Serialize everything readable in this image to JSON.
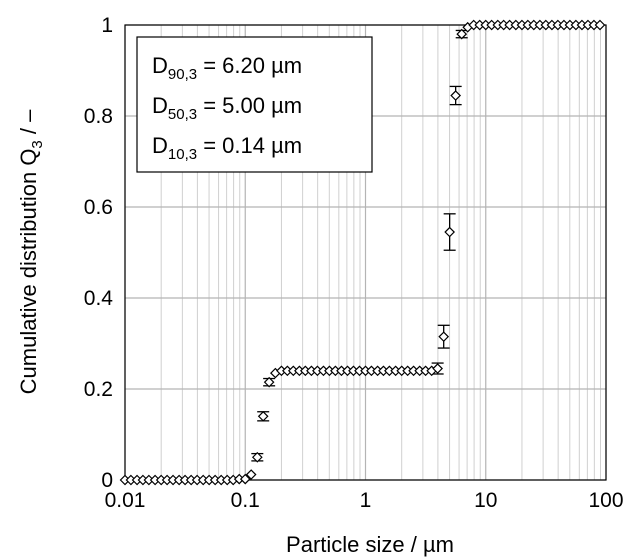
{
  "chart_data": {
    "type": "scatter",
    "title": "",
    "xlabel": "Particle size / µm",
    "ylabel_main": "Cumulative distribution Q",
    "ylabel_sub": "3",
    "ylabel_tail": " / –",
    "x_scale": "log",
    "xlim": [
      0.01,
      100
    ],
    "ylim": [
      0,
      1
    ],
    "x_ticks": [
      0.01,
      0.1,
      1,
      10,
      100
    ],
    "x_tick_labels": [
      "0.01",
      "0.1",
      "1",
      "10",
      "100"
    ],
    "y_ticks": [
      0,
      0.2,
      0.4,
      0.6,
      0.8,
      1
    ],
    "y_tick_labels": [
      "0",
      "0.2",
      "0.4",
      "0.6",
      "0.8",
      "1"
    ],
    "grid": true,
    "marker": "open-diamond",
    "color": "#000000",
    "legend_placement": "top-left",
    "legend_items": [
      {
        "main": "D",
        "sub": "90,3",
        "text": " = 6.20 µm"
      },
      {
        "main": "D",
        "sub": "50,3",
        "text": " = 5.00 µm"
      },
      {
        "main": "D",
        "sub": "10,3",
        "text": " = 0.14 µm"
      }
    ],
    "x": [
      0.01,
      0.0112,
      0.0126,
      0.0141,
      0.0158,
      0.0178,
      0.02,
      0.0224,
      0.0251,
      0.0282,
      0.0316,
      0.0355,
      0.0398,
      0.0447,
      0.0501,
      0.0562,
      0.0631,
      0.0708,
      0.0794,
      0.0891,
      0.1,
      0.112,
      0.126,
      0.141,
      0.158,
      0.178,
      0.2,
      0.224,
      0.251,
      0.282,
      0.316,
      0.355,
      0.398,
      0.447,
      0.501,
      0.562,
      0.631,
      0.708,
      0.794,
      0.891,
      1.0,
      1.12,
      1.26,
      1.41,
      1.58,
      1.78,
      2.0,
      2.24,
      2.51,
      2.82,
      3.16,
      3.55,
      3.98,
      4.47,
      5.01,
      5.62,
      6.31,
      7.08,
      7.94,
      8.91,
      10.0,
      11.2,
      12.6,
      14.1,
      15.8,
      17.8,
      20.0,
      22.4,
      25.1,
      28.2,
      31.6,
      35.5,
      39.8,
      44.7,
      50.1,
      56.2,
      63.1,
      70.8,
      79.4,
      89.1
    ],
    "y": [
      0,
      0,
      0,
      0,
      0,
      0,
      0,
      0,
      0,
      0,
      0,
      0,
      0,
      0,
      0,
      0,
      0,
      0,
      0,
      0.002,
      0.002,
      0.012,
      0.05,
      0.14,
      0.215,
      0.235,
      0.24,
      0.24,
      0.24,
      0.24,
      0.24,
      0.24,
      0.24,
      0.24,
      0.24,
      0.24,
      0.24,
      0.24,
      0.24,
      0.24,
      0.24,
      0.24,
      0.24,
      0.24,
      0.24,
      0.24,
      0.24,
      0.24,
      0.24,
      0.24,
      0.24,
      0.24,
      0.245,
      0.315,
      0.545,
      0.845,
      0.98,
      0.995,
      1,
      1,
      1,
      1,
      1,
      1,
      1,
      1,
      1,
      1,
      1,
      1,
      1,
      1,
      1,
      1,
      1,
      1,
      1,
      1,
      1,
      1
    ],
    "error_bars": [
      {
        "x": 0.126,
        "y": 0.05,
        "err": 0.008
      },
      {
        "x": 0.141,
        "y": 0.14,
        "err": 0.01
      },
      {
        "x": 0.158,
        "y": 0.215,
        "err": 0.008
      },
      {
        "x": 3.98,
        "y": 0.245,
        "err": 0.012
      },
      {
        "x": 4.47,
        "y": 0.315,
        "err": 0.025
      },
      {
        "x": 5.01,
        "y": 0.545,
        "err": 0.04
      },
      {
        "x": 5.62,
        "y": 0.845,
        "err": 0.02
      },
      {
        "x": 6.31,
        "y": 0.98,
        "err": 0.008
      }
    ]
  }
}
